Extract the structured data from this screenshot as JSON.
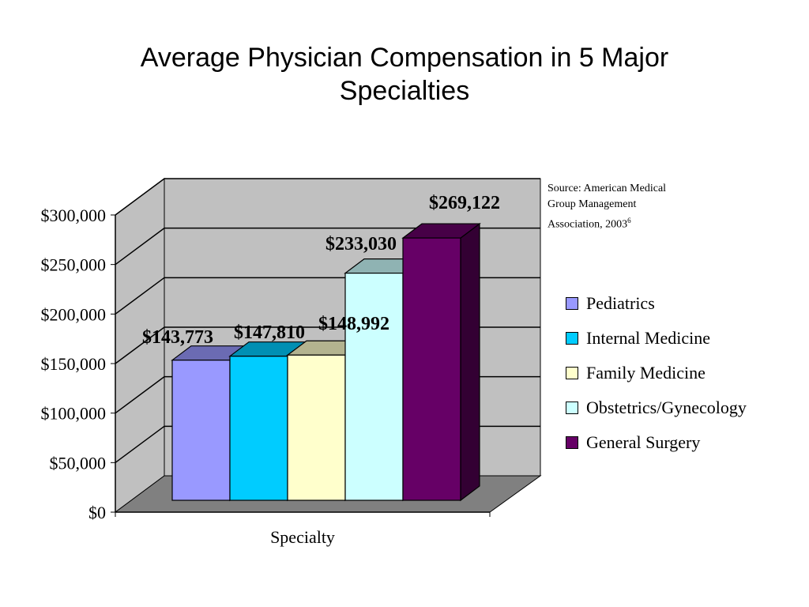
{
  "title_line1": "Average Physician Compensation in 5 Major",
  "title_line2": "Specialties",
  "source": {
    "line1": "Source: American Medical",
    "line2": "Group Management",
    "line3": "Association, 2003",
    "superscript": "6"
  },
  "chart_data": {
    "type": "bar",
    "style": "3d-clustered",
    "xlabel": "Specialty",
    "ylabel": "",
    "ylim": [
      0,
      300000
    ],
    "yticks": [
      0,
      50000,
      100000,
      150000,
      200000,
      250000,
      300000
    ],
    "ytick_labels": [
      "$0",
      "$50,000",
      "$100,000",
      "$150,000",
      "$200,000",
      "$250,000",
      "$300,000"
    ],
    "grid": true,
    "legend_position": "right",
    "series": [
      {
        "name": "Pediatrics",
        "value": 143773,
        "label": "$143,773",
        "color": "#9999ff"
      },
      {
        "name": "Internal Medicine",
        "value": 147810,
        "label": "$147,810",
        "color": "#00ccff"
      },
      {
        "name": "Family Medicine",
        "value": 148992,
        "label": "$148,992",
        "color": "#ffffcc"
      },
      {
        "name": "Obstetrics/Gynecology",
        "value": 233030,
        "label": "$233,030",
        "color": "#ccffff"
      },
      {
        "name": "General Surgery",
        "value": 269122,
        "label": "$269,122",
        "color": "#660066"
      }
    ]
  }
}
